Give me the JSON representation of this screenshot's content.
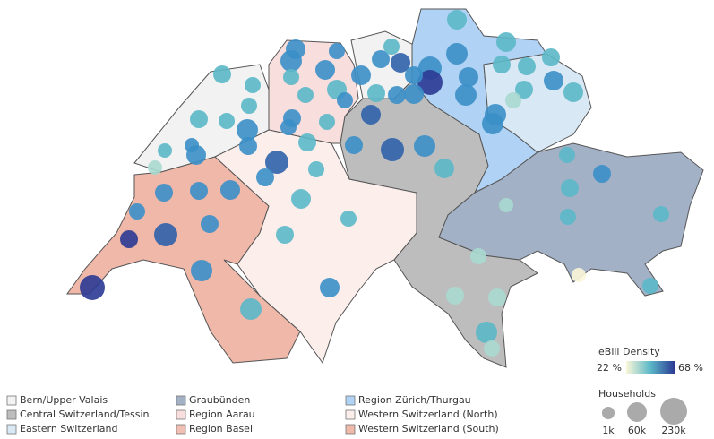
{
  "regions": [
    {
      "name": "Bern/Upper Valais",
      "color": "#f2f2f2"
    },
    {
      "name": "Central Switzerland/Tessin",
      "color": "#bdbdbd"
    },
    {
      "name": "Eastern Switzerland",
      "color": "#d9e8f5"
    },
    {
      "name": "Graubünden",
      "color": "#a3b1c6"
    },
    {
      "name": "Region Aarau",
      "color": "#f8dedd"
    },
    {
      "name": "Region Basel",
      "color": "#f1bfb3"
    },
    {
      "name": "Region Zürich/Thurgau",
      "color": "#b0d2f4"
    },
    {
      "name": "Western Switzerland (North)",
      "color": "#fbeeeb"
    },
    {
      "name": "Western Switzerland (South)",
      "color": "#efb8a9"
    }
  ],
  "color_scale": {
    "title": "eBill Density",
    "min_label": "22 %",
    "max_label": "68 %",
    "min_color": "#fbf6d8",
    "max_color": "#2b3a94"
  },
  "size_scale": {
    "title": "Households",
    "labels": [
      "1k",
      "60k",
      "230k"
    ]
  }
}
